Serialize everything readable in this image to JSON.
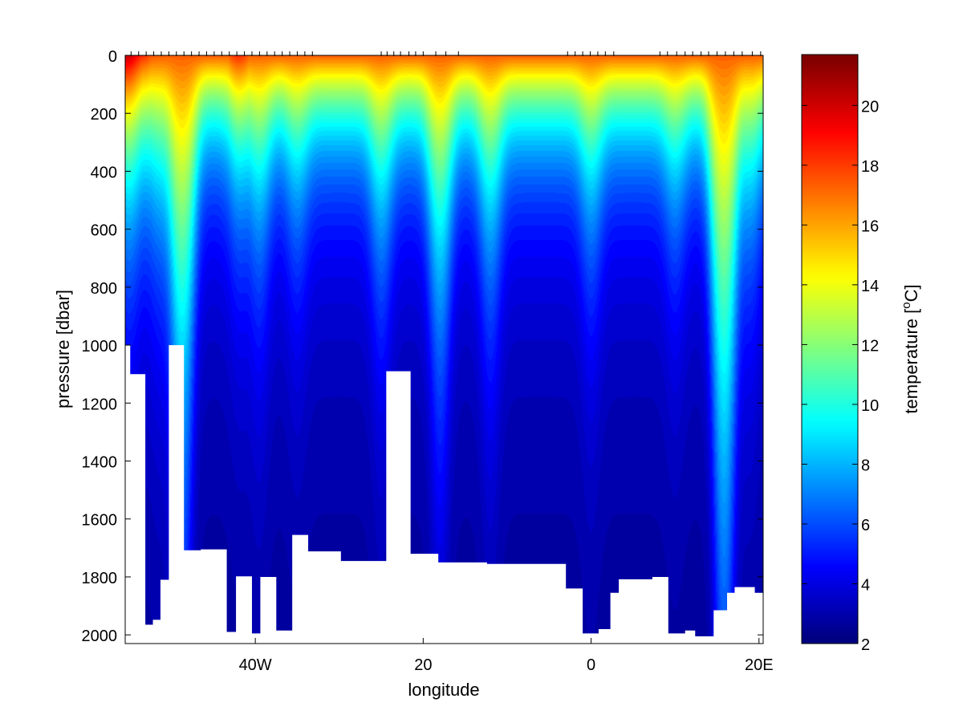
{
  "chart_data": {
    "type": "heatmap",
    "title": "",
    "xlabel": "longitude",
    "ylabel": "pressure [dbar]",
    "colorbar_label": "temperature [",
    "colorbar_label_sup": "o",
    "colorbar_label_end": "C]",
    "colormap": "jet",
    "x_unit_note": "degrees longitude, negative = west",
    "xlim": [
      -55.5,
      20.5
    ],
    "ylim": [
      2030,
      0
    ],
    "clim": [
      2,
      21.7
    ],
    "x_ticks": [
      {
        "value": -40,
        "label": "40W"
      },
      {
        "value": -20,
        "label": "20"
      },
      {
        "value": 0,
        "label": "0"
      },
      {
        "value": 20,
        "label": "20E"
      }
    ],
    "y_ticks": [
      {
        "value": 0,
        "label": "0"
      },
      {
        "value": 200,
        "label": "200"
      },
      {
        "value": 400,
        "label": "400"
      },
      {
        "value": 600,
        "label": "600"
      },
      {
        "value": 800,
        "label": "800"
      },
      {
        "value": 1000,
        "label": "1000"
      },
      {
        "value": 1200,
        "label": "1200"
      },
      {
        "value": 1400,
        "label": "1400"
      },
      {
        "value": 1600,
        "label": "1600"
      },
      {
        "value": 1800,
        "label": "1800"
      },
      {
        "value": 2000,
        "label": "2000"
      }
    ],
    "colorbar_ticks": [
      {
        "value": 2,
        "label": "2"
      },
      {
        "value": 4,
        "label": "4"
      },
      {
        "value": 6,
        "label": "6"
      },
      {
        "value": 8,
        "label": "8"
      },
      {
        "value": 10,
        "label": "10"
      },
      {
        "value": 12,
        "label": "12"
      },
      {
        "value": 14,
        "label": "14"
      },
      {
        "value": 16,
        "label": "16"
      },
      {
        "value": 18,
        "label": "18"
      },
      {
        "value": 20,
        "label": "20"
      }
    ],
    "station_longitudes": [
      -54.8,
      -53.9,
      -53,
      -52.1,
      -51.2,
      -50.3,
      -49.4,
      -48.5,
      -47.6,
      -46.7,
      -45.8,
      -44.9,
      -44,
      -43.1,
      -42.2,
      -41.3,
      -40.4,
      -39.5,
      -38.6,
      -37.7,
      -36.8,
      -35.9,
      -35,
      -34.1,
      -33.2,
      -25,
      -24.3,
      -23.5,
      -22.7,
      -21.7,
      -20.9,
      -20,
      -18.5,
      -17.3,
      -15.8,
      -2.8,
      -1.9,
      -1,
      -0.1,
      0.8,
      1.7,
      2.7,
      8.2,
      9.1,
      10.2,
      11.2,
      12.1,
      13.1,
      14,
      15,
      16,
      17,
      18,
      19.2,
      20.2
    ],
    "bottom_profile": [
      {
        "lon": -55.5,
        "depth": 1000
      },
      {
        "lon": -54.9,
        "depth": 1100
      },
      {
        "lon": -53.1,
        "depth": 1965
      },
      {
        "lon": -52.2,
        "depth": 1948
      },
      {
        "lon": -51.3,
        "depth": 1810
      },
      {
        "lon": -50.3,
        "depth": 1000
      },
      {
        "lon": -48.5,
        "depth": 1708
      },
      {
        "lon": -46.5,
        "depth": 1705
      },
      {
        "lon": -44.5,
        "depth": 1705
      },
      {
        "lon": -43.4,
        "depth": 1990
      },
      {
        "lon": -42.3,
        "depth": 1798
      },
      {
        "lon": -40.4,
        "depth": 1995
      },
      {
        "lon": -39.4,
        "depth": 1800
      },
      {
        "lon": -37.5,
        "depth": 1985
      },
      {
        "lon": -35.6,
        "depth": 1655
      },
      {
        "lon": -33.7,
        "depth": 1712
      },
      {
        "lon": -29.8,
        "depth": 1745
      },
      {
        "lon": -24.4,
        "depth": 1090
      },
      {
        "lon": -21.5,
        "depth": 1720
      },
      {
        "lon": -18.2,
        "depth": 1750
      },
      {
        "lon": -12.4,
        "depth": 1755
      },
      {
        "lon": -3,
        "depth": 1840
      },
      {
        "lon": -1,
        "depth": 1995
      },
      {
        "lon": 0.9,
        "depth": 1980
      },
      {
        "lon": 2.3,
        "depth": 1855
      },
      {
        "lon": 3.3,
        "depth": 1808
      },
      {
        "lon": 7.3,
        "depth": 1800
      },
      {
        "lon": 9.2,
        "depth": 1995
      },
      {
        "lon": 11.2,
        "depth": 1985
      },
      {
        "lon": 12.4,
        "depth": 2005
      },
      {
        "lon": 14.6,
        "depth": 1915
      },
      {
        "lon": 16.2,
        "depth": 1855
      },
      {
        "lon": 17.1,
        "depth": 1835
      },
      {
        "lon": 19.5,
        "depth": 1855
      },
      {
        "lon": 20.5,
        "depth": 1900
      }
    ],
    "surface_features": [
      {
        "lon": -55.5,
        "depth": 50,
        "temp": 11
      },
      {
        "lon": -55.0,
        "depth": 120,
        "temp": 5
      },
      {
        "lon": -53.5,
        "depth": 60,
        "temp": 9
      },
      {
        "lon": -51.5,
        "depth": 180,
        "temp": 12
      },
      {
        "lon": -49.0,
        "depth": 420,
        "temp": 16
      },
      {
        "lon": -48.5,
        "depth": 600,
        "temp": 12
      },
      {
        "lon": -42,
        "depth": 120,
        "temp": 9
      },
      {
        "lon": -39.5,
        "depth": 220,
        "temp": 11
      },
      {
        "lon": -35,
        "depth": 150,
        "temp": 14
      },
      {
        "lon": -25,
        "depth": 250,
        "temp": 11
      },
      {
        "lon": -18,
        "depth": 500,
        "temp": 10
      },
      {
        "lon": -12,
        "depth": 300,
        "temp": 10
      },
      {
        "lon": 0,
        "depth": 200,
        "temp": 9
      },
      {
        "lon": 10,
        "depth": 150,
        "temp": 13
      },
      {
        "lon": 15.5,
        "depth": 450,
        "temp": 15
      },
      {
        "lon": 16,
        "depth": 900,
        "temp": 8
      },
      {
        "lon": 19,
        "depth": 200,
        "temp": 12
      }
    ]
  }
}
